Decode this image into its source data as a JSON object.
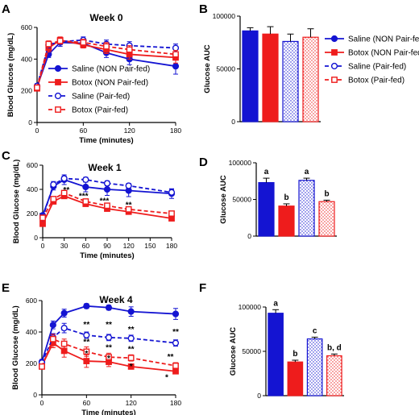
{
  "colors": {
    "saline": "#1414d2",
    "botox": "#ee1c1c",
    "axis": "#000000"
  },
  "chart_data": [
    {
      "panel": "A",
      "type": "line",
      "title": "Week 0",
      "xlabel": "Time (minutes)",
      "ylabel": "Blood Glucose (mg/dL)",
      "xlim": [
        0,
        180
      ],
      "ylim": [
        0,
        600
      ],
      "xticks": [
        0,
        60,
        120,
        180
      ],
      "yticks": [
        0,
        200,
        400,
        600
      ],
      "grid": false,
      "series": [
        {
          "name": "Saline (NON Pair-fed)",
          "color": "#1414d2",
          "dashed": false,
          "fill": true,
          "marker": "circle",
          "x": [
            0,
            15,
            30,
            60,
            90,
            120,
            180
          ],
          "y": [
            225,
            430,
            505,
            500,
            440,
            400,
            355
          ],
          "err": [
            15,
            20,
            25,
            20,
            30,
            35,
            50
          ]
        },
        {
          "name": "Botox (NON Pair-fed)",
          "color": "#ee1c1c",
          "dashed": false,
          "fill": true,
          "marker": "square",
          "x": [
            0,
            15,
            30,
            60,
            90,
            120,
            180
          ],
          "y": [
            215,
            470,
            520,
            490,
            460,
            430,
            410
          ],
          "err": [
            15,
            25,
            20,
            20,
            25,
            30,
            35
          ]
        },
        {
          "name": "Saline (Pair-fed)",
          "color": "#1414d2",
          "dashed": true,
          "fill": false,
          "marker": "circle",
          "x": [
            0,
            15,
            30,
            60,
            90,
            120,
            180
          ],
          "y": [
            230,
            490,
            510,
            520,
            495,
            485,
            470
          ],
          "err": [
            15,
            20,
            20,
            20,
            25,
            25,
            25
          ]
        },
        {
          "name": "Botox (Pair-fed)",
          "color": "#ee1c1c",
          "dashed": true,
          "fill": false,
          "marker": "square",
          "x": [
            0,
            15,
            30,
            60,
            90,
            120,
            180
          ],
          "y": [
            220,
            495,
            515,
            505,
            480,
            460,
            430
          ],
          "err": [
            15,
            20,
            20,
            20,
            25,
            25,
            25
          ]
        }
      ]
    },
    {
      "panel": "B",
      "type": "bar",
      "ylabel": "Glucose AUC",
      "ylim": [
        0,
        100000
      ],
      "yticks": [
        0,
        50000,
        100000
      ],
      "categories": [
        "Saline (NON Pair-fed)",
        "Botox (NON Pair-fed)",
        "Saline (Pair-fed)",
        "Botox (Pair-fed)"
      ],
      "values": [
        86000,
        83000,
        76000,
        80000
      ],
      "err": [
        3000,
        7000,
        7000,
        8000
      ],
      "colors": [
        "#1414d2",
        "#ee1c1c",
        "#1414d2",
        "#ee1c1c"
      ],
      "patterned": [
        false,
        false,
        true,
        true
      ],
      "legend": [
        {
          "label": "Saline (NON Pair-fed)",
          "color": "#1414d2",
          "fill": true,
          "marker": "circle",
          "dashed": false
        },
        {
          "label": "Botox (NON Pair-fed)",
          "color": "#ee1c1c",
          "fill": true,
          "marker": "square",
          "dashed": false
        },
        {
          "label": "Saline (Pair-fed)",
          "color": "#1414d2",
          "fill": false,
          "marker": "circle",
          "dashed": true
        },
        {
          "label": "Botox (Pair-fed)",
          "color": "#ee1c1c",
          "fill": false,
          "marker": "square",
          "dashed": true
        }
      ]
    },
    {
      "panel": "C",
      "type": "line",
      "title": "Week 1",
      "xlabel": "Time (minutes)",
      "ylabel": "Blood Glucose (mg/dL)",
      "xlim": [
        0,
        180
      ],
      "ylim": [
        0,
        600
      ],
      "xticks": [
        0,
        30,
        60,
        90,
        120,
        150,
        180
      ],
      "yticks": [
        0,
        200,
        400,
        600
      ],
      "grid": false,
      "series": [
        {
          "name": "Saline (NON Pair-fed)",
          "color": "#1414d2",
          "dashed": false,
          "fill": true,
          "marker": "circle",
          "x": [
            0,
            15,
            30,
            60,
            90,
            120,
            180
          ],
          "y": [
            185,
            425,
            480,
            420,
            400,
            390,
            365
          ],
          "err": [
            15,
            30,
            40,
            40,
            50,
            50,
            40
          ]
        },
        {
          "name": "Botox (NON Pair-fed)",
          "color": "#ee1c1c",
          "dashed": false,
          "fill": true,
          "marker": "square",
          "x": [
            0,
            15,
            30,
            60,
            90,
            120,
            180
          ],
          "y": [
            115,
            300,
            345,
            280,
            240,
            215,
            160
          ],
          "err": [
            10,
            15,
            20,
            20,
            15,
            15,
            10
          ]
        },
        {
          "name": "Saline (Pair-fed)",
          "color": "#1414d2",
          "dashed": true,
          "fill": false,
          "marker": "circle",
          "x": [
            0,
            15,
            30,
            60,
            90,
            120,
            180
          ],
          "y": [
            165,
            440,
            490,
            480,
            450,
            430,
            375
          ],
          "err": [
            10,
            25,
            20,
            20,
            20,
            20,
            25
          ]
        },
        {
          "name": "Botox (Pair-fed)",
          "color": "#ee1c1c",
          "dashed": true,
          "fill": false,
          "marker": "square",
          "x": [
            0,
            15,
            30,
            60,
            90,
            120,
            180
          ],
          "y": [
            165,
            320,
            370,
            300,
            265,
            235,
            200
          ],
          "err": [
            10,
            15,
            20,
            20,
            15,
            15,
            10
          ]
        }
      ],
      "annotations": [
        {
          "text": "**",
          "x": 33,
          "y": 375
        },
        {
          "text": "***",
          "x": 57,
          "y": 325
        },
        {
          "text": "***",
          "x": 86,
          "y": 285
        },
        {
          "text": "**",
          "x": 120,
          "y": 250
        }
      ]
    },
    {
      "panel": "D",
      "type": "bar",
      "ylabel": "Glucose AUC",
      "ylim": [
        0,
        100000
      ],
      "yticks": [
        0,
        50000,
        100000
      ],
      "categories": [
        "Saline (NON Pair-fed)",
        "Botox (NON Pair-fed)",
        "Saline (Pair-fed)",
        "Botox (Pair-fed)"
      ],
      "values": [
        73000,
        41000,
        76000,
        47000
      ],
      "err": [
        6000,
        3000,
        3000,
        2000
      ],
      "colors": [
        "#1414d2",
        "#ee1c1c",
        "#1414d2",
        "#ee1c1c"
      ],
      "patterned": [
        false,
        false,
        true,
        true
      ],
      "labels": [
        "a",
        "b",
        "a",
        "b"
      ]
    },
    {
      "panel": "E",
      "type": "line",
      "title": "Week 4",
      "xlabel": "Time (minutes)",
      "ylabel": "Blood Glucose (mg/dL)",
      "xlim": [
        0,
        180
      ],
      "ylim": [
        0,
        600
      ],
      "xticks": [
        0,
        60,
        120,
        180
      ],
      "yticks": [
        0,
        200,
        400,
        600
      ],
      "grid": false,
      "series": [
        {
          "name": "Saline (NON Pair-fed)",
          "color": "#1414d2",
          "dashed": false,
          "fill": true,
          "marker": "circle",
          "x": [
            0,
            15,
            30,
            60,
            90,
            120,
            180
          ],
          "y": [
            210,
            445,
            520,
            565,
            555,
            530,
            515
          ],
          "err": [
            15,
            25,
            25,
            15,
            15,
            30,
            35
          ]
        },
        {
          "name": "Botox (NON Pair-fed)",
          "color": "#ee1c1c",
          "dashed": false,
          "fill": true,
          "marker": "square",
          "x": [
            0,
            15,
            30,
            60,
            90,
            120,
            180
          ],
          "y": [
            185,
            330,
            280,
            215,
            210,
            180,
            150
          ],
          "err": [
            15,
            30,
            40,
            40,
            30,
            15,
            15
          ]
        },
        {
          "name": "Saline (Pair-fed)",
          "color": "#1414d2",
          "dashed": true,
          "fill": false,
          "marker": "circle",
          "x": [
            0,
            15,
            30,
            60,
            90,
            120,
            180
          ],
          "y": [
            205,
            365,
            425,
            380,
            365,
            360,
            330
          ],
          "err": [
            15,
            25,
            30,
            20,
            20,
            20,
            20
          ]
        },
        {
          "name": "Botox (Pair-fed)",
          "color": "#ee1c1c",
          "dashed": true,
          "fill": false,
          "marker": "square",
          "x": [
            0,
            15,
            30,
            60,
            90,
            120,
            180
          ],
          "y": [
            180,
            355,
            325,
            275,
            240,
            235,
            185
          ],
          "err": [
            15,
            30,
            30,
            30,
            25,
            20,
            20
          ]
        }
      ],
      "annotations": [
        {
          "text": "**",
          "x": 60,
          "y": 430
        },
        {
          "text": "**",
          "x": 90,
          "y": 430
        },
        {
          "text": "**",
          "x": 120,
          "y": 400
        },
        {
          "text": "**",
          "x": 180,
          "y": 385
        },
        {
          "text": "**",
          "x": 60,
          "y": 320
        },
        {
          "text": "**",
          "x": 90,
          "y": 285
        },
        {
          "text": "**",
          "x": 120,
          "y": 275
        },
        {
          "text": "**",
          "x": 173,
          "y": 225
        },
        {
          "text": "*",
          "x": 60,
          "y": 245
        },
        {
          "text": "*",
          "x": 90,
          "y": 215
        },
        {
          "text": "*",
          "x": 120,
          "y": 165
        },
        {
          "text": "*",
          "x": 168,
          "y": 95
        }
      ]
    },
    {
      "panel": "F",
      "type": "bar",
      "ylabel": "Glucose AUC",
      "ylim": [
        0,
        100000
      ],
      "yticks": [
        0,
        50000,
        100000
      ],
      "categories": [
        "Saline (NON Pair-fed)",
        "Botox (NON Pair-fed)",
        "Saline (Pair-fed)",
        "Botox (Pair-fed)"
      ],
      "values": [
        93000,
        38000,
        64000,
        45000
      ],
      "err": [
        4000,
        2000,
        2000,
        2000
      ],
      "colors": [
        "#1414d2",
        "#ee1c1c",
        "#1414d2",
        "#ee1c1c"
      ],
      "patterned": [
        false,
        false,
        true,
        true
      ],
      "labels": [
        "a",
        "b",
        "c",
        "b, d"
      ]
    }
  ]
}
